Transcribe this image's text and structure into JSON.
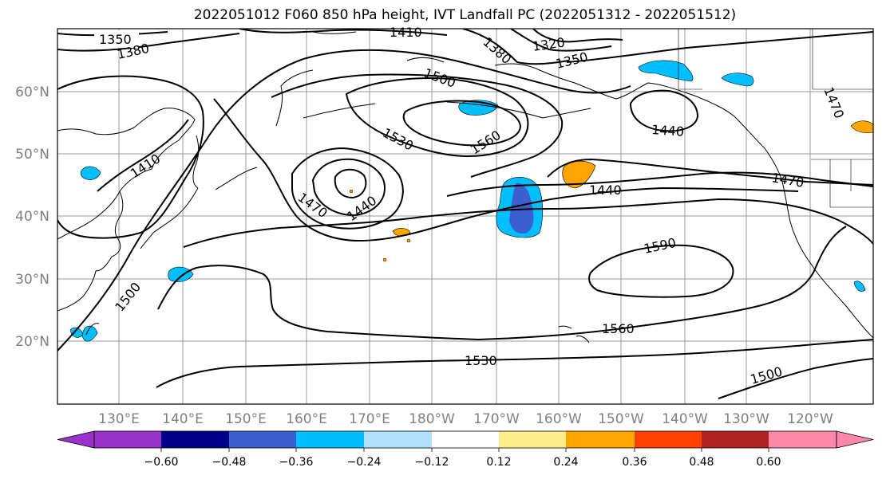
{
  "title": "2022051012 F060 850 hPa height, IVT Landfall PC (2022051312 - 2022051512)",
  "latitude_labels": [
    "20°N",
    "30°N",
    "40°N",
    "50°N",
    "60°N"
  ],
  "longitude_labels": [
    "130°E",
    "140°E",
    "150°E",
    "160°E",
    "170°E",
    "180°W",
    "170°W",
    "160°W",
    "150°W",
    "140°W",
    "130°W",
    "120°W"
  ],
  "contour_labels": [
    "1350",
    "1380",
    "1410",
    "1380",
    "1320",
    "1350",
    "1500",
    "1530",
    "1560",
    "1410",
    "1470",
    "1440",
    "1440",
    "1440",
    "1470",
    "1590",
    "1500",
    "1560",
    "1530",
    "1500",
    "1470"
  ],
  "colorbar": {
    "tick_labels": [
      "−0.60",
      "−0.48",
      "−0.36",
      "−0.24",
      "−0.12",
      "0.12",
      "0.24",
      "0.36",
      "0.48",
      "0.60"
    ],
    "colors": [
      "#9933cc",
      "#000088",
      "#3b5fcf",
      "#00bfff",
      "#b0e2ff",
      "#ffffff",
      "#ffec8b",
      "#ffa500",
      "#ff4000",
      "#b22222",
      "#ff88aa"
    ]
  }
}
